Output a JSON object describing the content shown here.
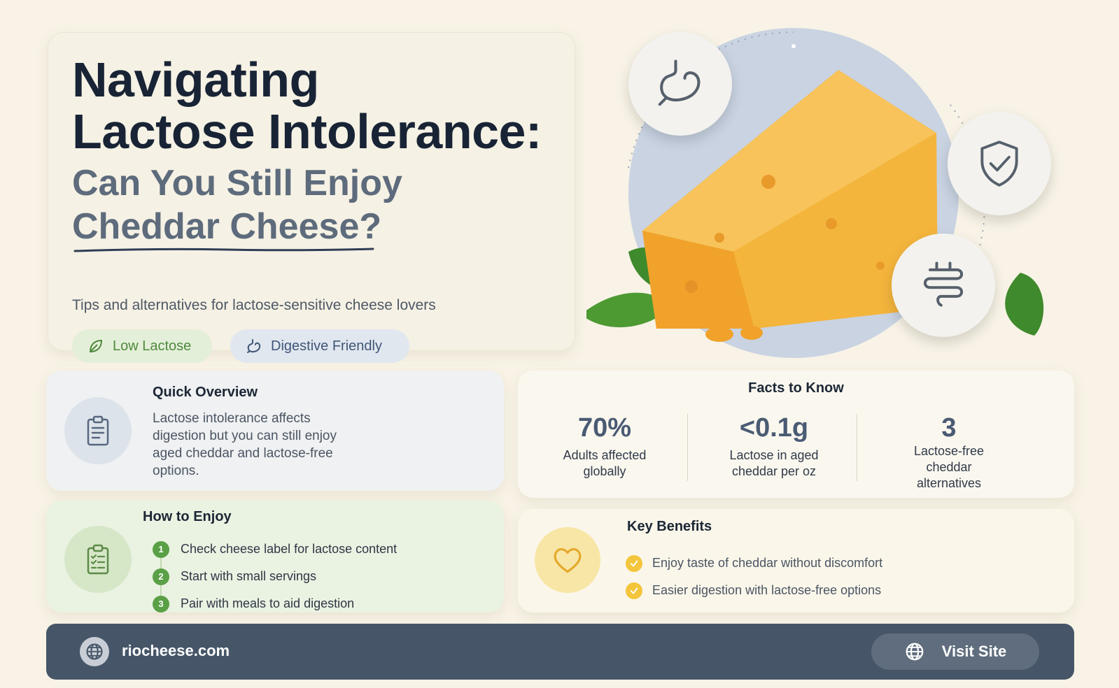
{
  "hero": {
    "title_line1": "Navigating",
    "title_line2": "Lactose Intolerance:",
    "subtitle_line1": "Can You Still Enjoy",
    "subtitle_line2": "Cheddar Cheese?",
    "tagline": "Tips and alternatives for lactose-sensitive cheese lovers",
    "tags": [
      {
        "label": "Low Lactose",
        "icon": "leaf-icon",
        "color": "#4e8a3c"
      },
      {
        "label": "Digestive Friendly",
        "icon": "stomach-icon",
        "color": "#3f5677"
      }
    ]
  },
  "illustration": {
    "badges": [
      "stomach-icon",
      "shield-check-icon",
      "intestine-icon"
    ]
  },
  "overview": {
    "title": "Quick Overview",
    "icon": "clipboard-icon",
    "body": "Lactose intolerance affects digestion but you can still enjoy aged cheddar and lactose-free options."
  },
  "facts": {
    "title": "Facts to Know",
    "items": [
      {
        "value": "70%",
        "label_line1": "Adults affected",
        "label_line2": "globally",
        "label_line3": ""
      },
      {
        "value": "<0.1g",
        "label_line1": "Lactose in aged",
        "label_line2": "cheddar per oz",
        "label_line3": ""
      },
      {
        "value": "3",
        "label_line1": "Lactose-free",
        "label_line2": "cheddar",
        "label_line3": "alternatives"
      }
    ]
  },
  "enjoy": {
    "title": "How to Enjoy",
    "icon": "checklist-icon",
    "steps": [
      {
        "num": "1",
        "text": "Check cheese label for lactose content"
      },
      {
        "num": "2",
        "text": "Start with small servings"
      },
      {
        "num": "3",
        "text": "Pair with meals to aid digestion"
      }
    ]
  },
  "benefits": {
    "title": "Key Benefits",
    "icon": "heart-icon",
    "items": [
      "Enjoy taste of cheddar without discomfort",
      "Easier digestion with lactose-free options"
    ]
  },
  "footer": {
    "url": "riocheese.com",
    "button_label": "Visit Site",
    "icon": "globe-icon"
  },
  "colors": {
    "background": "#f8f3e6",
    "footer": "#465668",
    "accent_green": "#5aa046",
    "accent_yellow": "#f3c53a",
    "cheese": "#f4b53c"
  }
}
